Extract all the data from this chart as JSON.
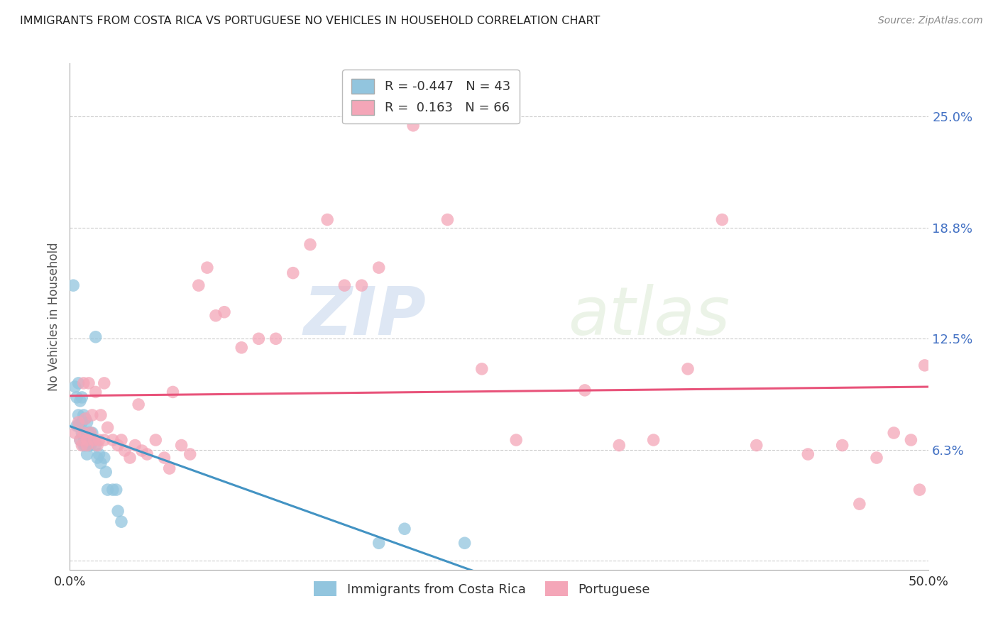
{
  "title": "IMMIGRANTS FROM COSTA RICA VS PORTUGUESE NO VEHICLES IN HOUSEHOLD CORRELATION CHART",
  "source": "Source: ZipAtlas.com",
  "ylabel": "No Vehicles in Household",
  "xlim": [
    0.0,
    0.5
  ],
  "ylim": [
    -0.005,
    0.28
  ],
  "yticks": [
    0.0,
    0.0625,
    0.125,
    0.1875,
    0.25
  ],
  "ytick_labels": [
    "",
    "6.3%",
    "12.5%",
    "18.8%",
    "25.0%"
  ],
  "xticks": [
    0.0,
    0.125,
    0.25,
    0.375,
    0.5
  ],
  "xtick_labels": [
    "0.0%",
    "",
    "",
    "",
    "50.0%"
  ],
  "watermark_zip": "ZIP",
  "watermark_atlas": "atlas",
  "legend_blue_r": "R = -0.447",
  "legend_blue_n": "N = 43",
  "legend_pink_r": "R =  0.163",
  "legend_pink_n": "N = 66",
  "legend_label_blue": "Immigrants from Costa Rica",
  "legend_label_pink": "Portuguese",
  "blue_color": "#92c5de",
  "pink_color": "#f4a6b8",
  "blue_line_color": "#4393c3",
  "pink_line_color": "#e8537a",
  "background_color": "#ffffff",
  "grid_color": "#cccccc",
  "title_color": "#222222",
  "right_ytick_color": "#4472c4",
  "blue_x": [
    0.002,
    0.003,
    0.004,
    0.004,
    0.005,
    0.005,
    0.005,
    0.006,
    0.006,
    0.007,
    0.007,
    0.007,
    0.008,
    0.008,
    0.008,
    0.009,
    0.009,
    0.009,
    0.01,
    0.01,
    0.01,
    0.011,
    0.011,
    0.012,
    0.012,
    0.013,
    0.013,
    0.014,
    0.015,
    0.015,
    0.016,
    0.017,
    0.018,
    0.02,
    0.021,
    0.022,
    0.025,
    0.027,
    0.028,
    0.03,
    0.18,
    0.195,
    0.23
  ],
  "blue_y": [
    0.155,
    0.098,
    0.092,
    0.076,
    0.1,
    0.082,
    0.076,
    0.09,
    0.068,
    0.092,
    0.078,
    0.072,
    0.082,
    0.07,
    0.065,
    0.08,
    0.072,
    0.065,
    0.078,
    0.068,
    0.06,
    0.072,
    0.065,
    0.072,
    0.065,
    0.072,
    0.068,
    0.068,
    0.126,
    0.065,
    0.058,
    0.06,
    0.055,
    0.058,
    0.05,
    0.04,
    0.04,
    0.04,
    0.028,
    0.022,
    0.01,
    0.018,
    0.01
  ],
  "pink_x": [
    0.003,
    0.005,
    0.006,
    0.007,
    0.008,
    0.008,
    0.009,
    0.01,
    0.01,
    0.011,
    0.012,
    0.013,
    0.014,
    0.015,
    0.016,
    0.017,
    0.018,
    0.02,
    0.02,
    0.022,
    0.025,
    0.028,
    0.03,
    0.032,
    0.035,
    0.038,
    0.04,
    0.042,
    0.045,
    0.05,
    0.055,
    0.058,
    0.06,
    0.065,
    0.07,
    0.075,
    0.08,
    0.085,
    0.09,
    0.1,
    0.11,
    0.12,
    0.13,
    0.14,
    0.15,
    0.16,
    0.17,
    0.18,
    0.2,
    0.22,
    0.24,
    0.26,
    0.3,
    0.32,
    0.34,
    0.36,
    0.38,
    0.4,
    0.43,
    0.45,
    0.46,
    0.47,
    0.48,
    0.49,
    0.495,
    0.498
  ],
  "pink_y": [
    0.072,
    0.078,
    0.068,
    0.065,
    0.1,
    0.072,
    0.08,
    0.068,
    0.065,
    0.1,
    0.072,
    0.082,
    0.068,
    0.095,
    0.065,
    0.068,
    0.082,
    0.068,
    0.1,
    0.075,
    0.068,
    0.065,
    0.068,
    0.062,
    0.058,
    0.065,
    0.088,
    0.062,
    0.06,
    0.068,
    0.058,
    0.052,
    0.095,
    0.065,
    0.06,
    0.155,
    0.165,
    0.138,
    0.14,
    0.12,
    0.125,
    0.125,
    0.162,
    0.178,
    0.192,
    0.155,
    0.155,
    0.165,
    0.245,
    0.192,
    0.108,
    0.068,
    0.096,
    0.065,
    0.068,
    0.108,
    0.192,
    0.065,
    0.06,
    0.065,
    0.032,
    0.058,
    0.072,
    0.068,
    0.04,
    0.11
  ]
}
